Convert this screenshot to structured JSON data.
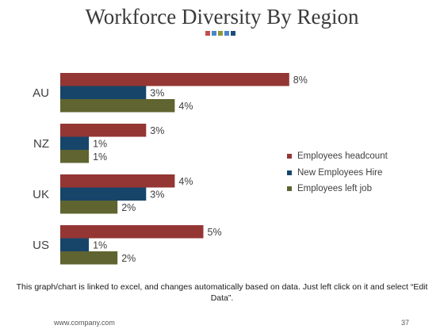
{
  "slide": {
    "title": "Workforce Diversity By Region",
    "note": "This graph/chart is linked to excel, and changes automatically based on data. Just left click on it and select “Edit Data”.",
    "footer_url": "www.company.com",
    "page_number": "37",
    "title_dots": [
      "#c0504d",
      "#4a86c8",
      "#8e9a3b",
      "#4a86c8",
      "#1f4e79"
    ]
  },
  "chart_data": {
    "type": "bar",
    "orientation": "horizontal",
    "categories": [
      "AU",
      "NZ",
      "UK",
      "US"
    ],
    "series": [
      {
        "name": "Employees headcount",
        "color": "#943634",
        "values": [
          8,
          3,
          4,
          5
        ],
        "labels": [
          "8%",
          "3%",
          "4%",
          "5%"
        ]
      },
      {
        "name": "New Employees Hire",
        "color": "#17456a",
        "values": [
          3,
          1,
          3,
          1
        ],
        "labels": [
          "3%",
          "1%",
          "3%",
          "1%"
        ]
      },
      {
        "name": "Employees left job",
        "color": "#5f6430",
        "values": [
          4,
          1,
          2,
          2
        ],
        "labels": [
          "4%",
          "1%",
          "2%",
          "2%"
        ]
      }
    ],
    "value_unit": "%",
    "grid": false,
    "legend": "right"
  }
}
